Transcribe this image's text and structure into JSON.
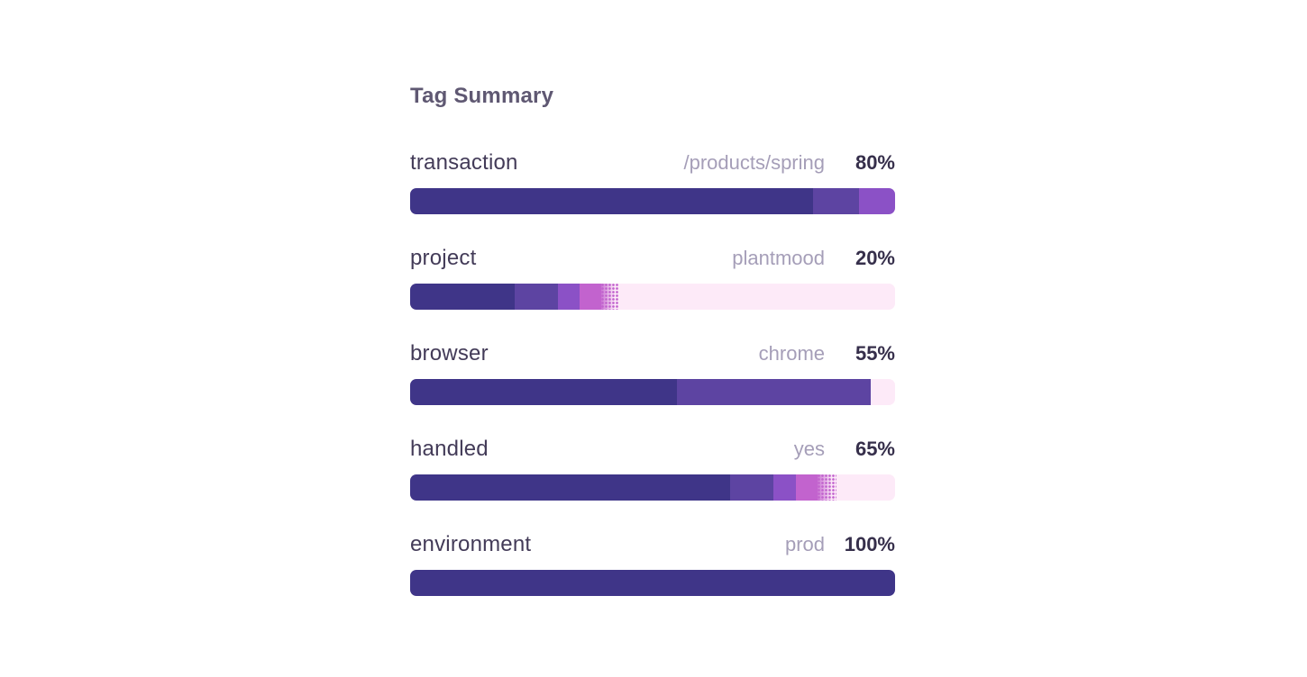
{
  "title": "Tag Summary",
  "chart_data": {
    "type": "bar",
    "orientation": "horizontal",
    "stacked": true,
    "unit": "%",
    "title": "Tag Summary",
    "track_color": "#fdeaf8",
    "palette": {
      "deep": "#3f3588",
      "mid": "#5d44a2",
      "violet": "#8b51c6",
      "orchid": "#c263ce",
      "track": "#fdeaf8"
    },
    "text_colors": {
      "title": "#5f5872",
      "label": "#433b58",
      "value": "#a59eb8",
      "percent": "#362f4b"
    },
    "rows": [
      {
        "label": "transaction",
        "value": "/products/spring",
        "percent": 80,
        "percent_label": "80%",
        "segments": [
          {
            "color": "deep",
            "pct": 83
          },
          {
            "color": "mid",
            "pct": 9.5
          },
          {
            "color": "violet",
            "pct": 7.5
          }
        ]
      },
      {
        "label": "project",
        "value": "plantmood",
        "percent": 20,
        "percent_label": "20%",
        "segments": [
          {
            "color": "deep",
            "pct": 21.5
          },
          {
            "color": "mid",
            "pct": 9
          },
          {
            "color": "violet",
            "pct": 4.5
          },
          {
            "color": "orchid",
            "pct": 4.5
          },
          {
            "color": "dots",
            "pct": 3.5
          }
        ]
      },
      {
        "label": "browser",
        "value": "chrome",
        "percent": 55,
        "percent_label": "55%",
        "segments": [
          {
            "color": "deep",
            "pct": 55
          },
          {
            "color": "mid",
            "pct": 40
          }
        ]
      },
      {
        "label": "handled",
        "value": "yes",
        "percent": 65,
        "percent_label": "65%",
        "segments": [
          {
            "color": "deep",
            "pct": 66
          },
          {
            "color": "mid",
            "pct": 9
          },
          {
            "color": "violet",
            "pct": 4.5
          },
          {
            "color": "orchid",
            "pct": 4.5
          },
          {
            "color": "dots",
            "pct": 4
          }
        ]
      },
      {
        "label": "environment",
        "value": "prod",
        "percent": 100,
        "percent_label": "100%",
        "segments": [
          {
            "color": "deep",
            "pct": 100
          }
        ]
      }
    ]
  }
}
